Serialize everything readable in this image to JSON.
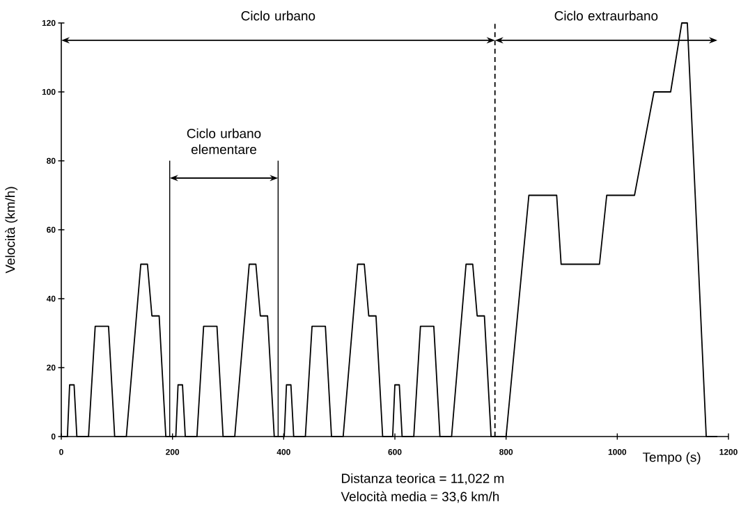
{
  "chart_data": {
    "type": "line",
    "xlabel": "Tempo (s)",
    "ylabel": "Velocità (km/h)",
    "x": [
      0,
      11,
      15,
      23,
      28,
      49,
      61,
      85,
      96,
      117,
      143,
      155,
      163,
      176,
      188,
      195,
      206,
      210,
      218,
      223,
      244,
      256,
      280,
      291,
      312,
      338,
      350,
      358,
      371,
      383,
      390,
      401,
      405,
      413,
      418,
      439,
      451,
      475,
      486,
      507,
      533,
      545,
      553,
      566,
      578,
      585,
      596,
      600,
      608,
      613,
      634,
      646,
      670,
      681,
      702,
      728,
      740,
      748,
      761,
      773,
      780,
      800,
      841,
      891,
      899,
      968,
      981,
      1031,
      1066,
      1096,
      1116,
      1126,
      1160,
      1180
    ],
    "series": [
      {
        "color": "#000000",
        "values": [
          0,
          0,
          15,
          15,
          0,
          0,
          32,
          32,
          0,
          0,
          50,
          50,
          35,
          35,
          0,
          0,
          0,
          15,
          15,
          0,
          0,
          32,
          32,
          0,
          0,
          50,
          50,
          35,
          35,
          0,
          0,
          0,
          15,
          15,
          0,
          0,
          32,
          32,
          0,
          0,
          50,
          50,
          35,
          35,
          0,
          0,
          0,
          15,
          15,
          0,
          0,
          32,
          32,
          0,
          0,
          50,
          50,
          35,
          35,
          0,
          0,
          0,
          70,
          70,
          50,
          50,
          70,
          70,
          100,
          100,
          120,
          120,
          0,
          0
        ]
      }
    ],
    "xlim": [
      0,
      1200
    ],
    "ylim": [
      0,
      120
    ],
    "xticks": [
      0,
      200,
      400,
      600,
      800,
      1000,
      1200
    ],
    "yticks": [
      0,
      20,
      40,
      60,
      80,
      100,
      120
    ],
    "marker": "none",
    "line_style": "solid",
    "ref_lines": [
      {
        "axis": "x",
        "value": 780,
        "line_style": "dashed",
        "color": "#000000"
      },
      {
        "axis": "x",
        "value": 195,
        "line_style": "solid",
        "color": "#000000"
      },
      {
        "axis": "x",
        "value": 390,
        "line_style": "solid",
        "color": "#000000"
      }
    ],
    "annotations": [
      "Ciclo urbano",
      "Ciclo extraurbano",
      "Ciclo urbano elementare",
      "Distanza teorica = 11,022 m",
      "Velocità media = 33,6 km/h"
    ]
  }
}
